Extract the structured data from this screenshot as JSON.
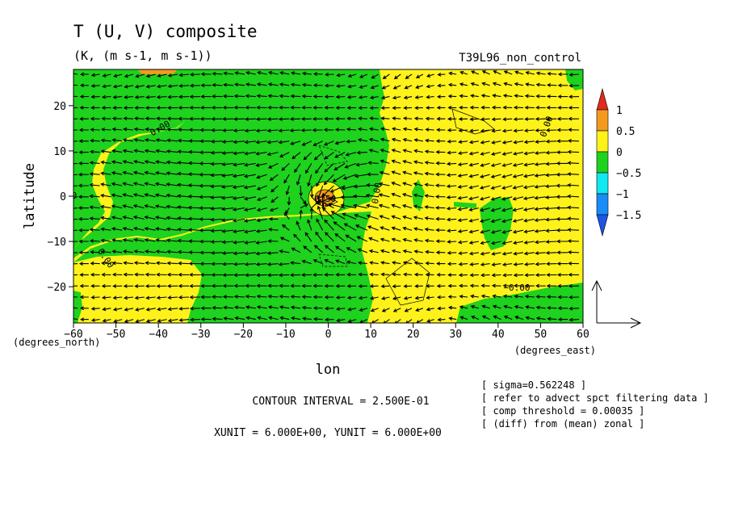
{
  "header": {
    "title": "T (U, V) composite",
    "units": "(K, (m s-1, m s-1))",
    "run": "T39L96_non_control"
  },
  "chart_data": {
    "type": "heatmap",
    "xlabel": "lon",
    "x_unit": "(degrees_east)",
    "ylabel": "latitude",
    "y_unit": "(degrees_north)",
    "xlim": [
      -60,
      60
    ],
    "ylim": [
      -28,
      28
    ],
    "x_ticks": [
      -60,
      -50,
      -40,
      -30,
      -20,
      -10,
      0,
      10,
      20,
      30,
      40,
      50,
      60
    ],
    "y_ticks": [
      -20,
      -10,
      0,
      10,
      20
    ],
    "colorbar": {
      "levels": [
        1,
        0.5,
        0,
        -0.5,
        -1,
        -1.5
      ],
      "level_labels": [
        "1",
        "0.5",
        "0",
        "−0.5",
        "−1",
        "−1.5"
      ],
      "colors": [
        "#e4281c",
        "#f39a1e",
        "#fff21a",
        "#1ed21e",
        "#12e8f0",
        "#1a8cf5",
        "#1a55e6"
      ]
    },
    "contour_labels": [
      "0.00",
      "0.00",
      "0.00",
      "0.50",
      "0.00",
      "0.00",
      "−0.00"
    ],
    "vector_field": {
      "description": "U,V wind composite arrows",
      "reference_arrow": "x and y reference vectors at lower right"
    }
  },
  "footer": {
    "contour_interval": "CONTOUR INTERVAL = 2.500E-01",
    "units_line": "XUNIT = 6.000E+00, YUNIT = 6.000E+00",
    "notes": [
      "[ sigma=0.562248 ]",
      "[ refer to advect spct filtering data ]",
      "[ comp threshold = 0.00035 ]",
      "[ (diff) from (mean) zonal ]"
    ]
  }
}
